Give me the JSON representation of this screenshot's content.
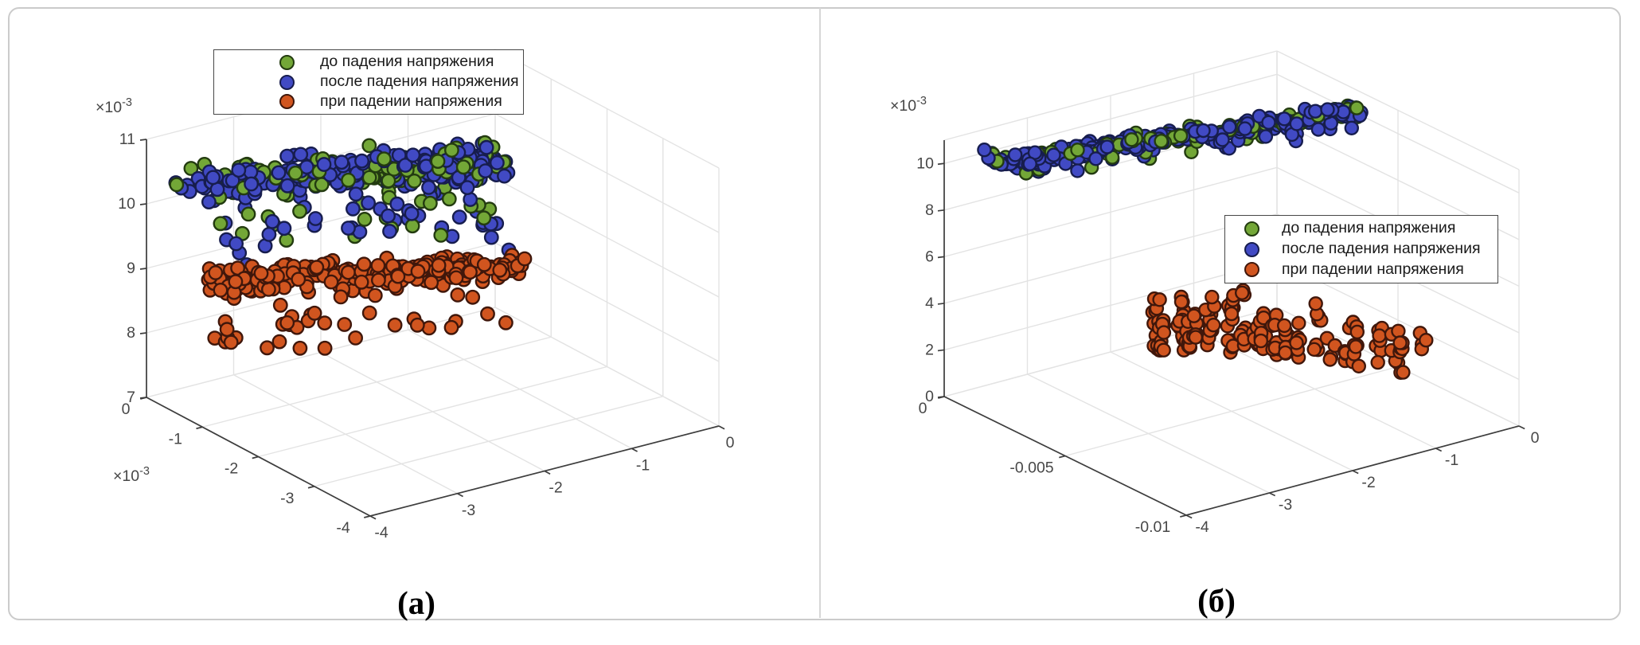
{
  "figure": {
    "background": "#ffffff",
    "border_color": "#cbcbcb",
    "divider_color": "#d6d6d6",
    "axis_color": "#3d3d3d",
    "grid_color": "#e3e3e3",
    "tick_label_color": "#474747"
  },
  "captions": {
    "a": "(а)",
    "b": "(б)"
  },
  "series": [
    {
      "id": "green",
      "label": "до падения напряжения",
      "color": "#73a737",
      "edge": "#233b10"
    },
    {
      "id": "blue",
      "label": "после падения напряжения",
      "color": "#414ac4",
      "edge": "#171d4e"
    },
    {
      "id": "orange",
      "label": "при падении напряжения",
      "color": "#d1551f",
      "edge": "#40170b"
    }
  ],
  "axes": {
    "a": {
      "z": {
        "tick_labels": [
          "7",
          "8",
          "9",
          "10",
          "11"
        ],
        "values": [
          7,
          8,
          9,
          10,
          11
        ],
        "exp_base": "×10",
        "exp_power": "-3"
      },
      "y": {
        "tick_labels": [
          "0",
          "-1",
          "-2",
          "-3",
          "-4"
        ],
        "values": [
          0,
          -1,
          -2,
          -3,
          -4
        ],
        "exp_base": "×10",
        "exp_power": "-3"
      },
      "x": {
        "tick_labels": [
          "-4",
          "-3",
          "-2",
          "-1",
          "0"
        ],
        "values": [
          -4,
          -3,
          -2,
          -1,
          0
        ]
      }
    },
    "b": {
      "z": {
        "tick_labels": [
          "0",
          "2",
          "4",
          "6",
          "8",
          "10"
        ],
        "values": [
          0,
          2,
          4,
          6,
          8,
          10
        ],
        "exp_base": "×10",
        "exp_power": "-3"
      },
      "y": {
        "tick_labels": [
          "0",
          "-0.005",
          "-0.01"
        ],
        "values": [
          0,
          -0.005,
          -0.01
        ]
      },
      "x": {
        "tick_labels": [
          "-4",
          "-3",
          "-2",
          "-1",
          "0"
        ],
        "values": [
          -4,
          -3,
          -2,
          -1,
          0
        ]
      }
    }
  },
  "chart_data": {
    "type": "scatter",
    "subtype": "scatter3d",
    "legend_entries": [
      "до падения напряжения",
      "после падения напряжения",
      "при падении напряжения"
    ],
    "panels": [
      {
        "name": "a",
        "xlim": [
          -4,
          0
        ],
        "ylim": [
          -4,
          0
        ],
        "zlim": [
          7,
          11
        ],
        "x_scale": "1e-3",
        "y_scale": "1e-3",
        "z_scale": "1e-3",
        "grid": true,
        "legend_position": "upper-left",
        "clusters": [
          {
            "kind": "band",
            "main": "blue",
            "alt": "green",
            "alt_frac": 0.36,
            "count": 420,
            "seed": 101,
            "t_pow": 0.75,
            "x0": -3.95,
            "x1": -0.75,
            "xj": 0.18,
            "y0": -0.6,
            "y1": -1.25,
            "yj": 0.4,
            "z0": 10.55,
            "z1": 10.15,
            "zj": 0.33,
            "tail_p": 0.17,
            "tail_min": 0.3,
            "tail_max": 1.1,
            "z_cap": 10.95
          },
          {
            "kind": "band",
            "main": "orange",
            "alt": null,
            "alt_frac": 0,
            "count": 270,
            "seed": 202,
            "t_pow": 1.0,
            "x0": -3.75,
            "x1": -0.7,
            "xj": 0.17,
            "y0": -0.65,
            "y1": -1.5,
            "yj": 0.38,
            "z0": 9.0,
            "z1": 8.6,
            "zj": 0.28,
            "tail_p": 0.13,
            "tail_min": 0.3,
            "tail_max": 1.2,
            "z_cap": 9.4
          }
        ]
      },
      {
        "name": "b",
        "xlim": [
          -4,
          0
        ],
        "ylim": [
          -0.01,
          0
        ],
        "zlim": [
          0,
          11
        ],
        "x_scale": "1e-3",
        "y_scale": "1",
        "z_scale": "1e-3",
        "grid": true,
        "legend_position": "middle-right",
        "clusters": [
          {
            "kind": "band",
            "main": "blue",
            "alt": "green",
            "alt_frac": 0.28,
            "count": 400,
            "seed": 303,
            "t_pow": 1.25,
            "x0": -3.7,
            "x1": -0.25,
            "xj": 0.12,
            "y0": -0.0012,
            "y1": -0.0043,
            "yj": 0.0006,
            "z0": 10.35,
            "z1": 10.9,
            "zj": 0.2,
            "tail_p": 0.1,
            "tail_min": 0.2,
            "tail_max": 0.7,
            "z_cap": 10.97
          },
          {
            "kind": "points",
            "main": "blue",
            "points": [
              [
                -3.75,
                -0.0008,
                10.75
              ]
            ]
          },
          {
            "kind": "columns",
            "main": "orange",
            "seed": 404,
            "cols": 26,
            "x0": -1.8,
            "x1": -0.08,
            "xj": 0.05,
            "ny0": 0.1,
            "ny_amp": 0.52,
            "ny_pow": 2.2,
            "nyj": 0.03,
            "yj": 0.0002,
            "z_base": 0.12,
            "col_h_min": 1.2,
            "col_h_max": 2.75,
            "pts_min": 4,
            "pts_max": 9
          }
        ]
      }
    ]
  }
}
